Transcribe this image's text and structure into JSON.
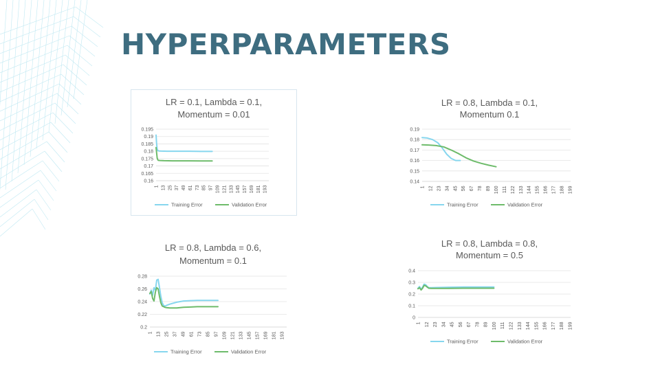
{
  "slide": {
    "title": "HYPERPARAMETERS"
  },
  "colors": {
    "title": "#3e6d80",
    "training": "#86d6ee",
    "validation": "#6dbb6a",
    "grid": "#e3e3e3",
    "text": "#595959"
  },
  "chart_data": [
    {
      "type": "line",
      "title_lines": [
        "LR = 0.1, Lambda = 0.1,",
        "Momentum = 0.01"
      ],
      "x_ticks": [
        "1",
        "13",
        "25",
        "37",
        "49",
        "61",
        "73",
        "85",
        "97",
        "109",
        "121",
        "133",
        "145",
        "157",
        "169",
        "181",
        "193"
      ],
      "y_ticks": [
        "0.195",
        "0.19",
        "0.185",
        "0.18",
        "0.175",
        "0.17",
        "0.165",
        "0.16"
      ],
      "ylim": [
        0.16,
        0.195
      ],
      "xlim": [
        1,
        200
      ],
      "grid": true,
      "legend": "bottom",
      "series": [
        {
          "name": "Training Error",
          "x": [
            1,
            2,
            3,
            4,
            6,
            10,
            20,
            40,
            60,
            80,
            100
          ],
          "y": [
            0.191,
            0.185,
            0.1815,
            0.1805,
            0.1802,
            0.1801,
            0.18,
            0.18,
            0.18,
            0.1799,
            0.1799
          ]
        },
        {
          "name": "Validation Error",
          "x": [
            1,
            2,
            3,
            4,
            5,
            8,
            15,
            30,
            60,
            80,
            100
          ],
          "y": [
            0.1825,
            0.179,
            0.1755,
            0.1742,
            0.1738,
            0.1737,
            0.1736,
            0.1735,
            0.1735,
            0.1734,
            0.1734
          ]
        }
      ]
    },
    {
      "type": "line",
      "title_lines": [
        "LR = 0.8, Lambda = 0.1,",
        "Momentum 0.1"
      ],
      "x_ticks": [
        "1",
        "12",
        "23",
        "34",
        "45",
        "56",
        "67",
        "78",
        "89",
        "100",
        "111",
        "122",
        "133",
        "144",
        "155",
        "166",
        "177",
        "188",
        "199"
      ],
      "y_ticks": [
        "0.19",
        "0.18",
        "0.17",
        "0.16",
        "0.15",
        "0.14"
      ],
      "ylim": [
        0.14,
        0.19
      ],
      "xlim": [
        1,
        200
      ],
      "grid": true,
      "legend": "bottom",
      "series": [
        {
          "name": "Training Error",
          "x": [
            1,
            8,
            15,
            22,
            28,
            34,
            40,
            46,
            52
          ],
          "y": [
            0.182,
            0.1815,
            0.18,
            0.177,
            0.172,
            0.166,
            0.162,
            0.16,
            0.16
          ]
        },
        {
          "name": "Validation Error",
          "x": [
            1,
            10,
            20,
            30,
            40,
            50,
            60,
            70,
            80,
            90,
            100
          ],
          "y": [
            0.175,
            0.1748,
            0.1743,
            0.173,
            0.17,
            0.1665,
            0.1625,
            0.1595,
            0.1573,
            0.1555,
            0.154
          ]
        }
      ]
    },
    {
      "type": "line",
      "title_lines": [
        "LR = 0.8, Lambda = 0.6,",
        "Momentum = 0.1"
      ],
      "x_ticks": [
        "1",
        "13",
        "25",
        "37",
        "49",
        "61",
        "73",
        "85",
        "97",
        "109",
        "121",
        "133",
        "145",
        "157",
        "169",
        "181",
        "193"
      ],
      "y_ticks": [
        "0.28",
        "0.26",
        "0.24",
        "0.22",
        "0.2"
      ],
      "ylim": [
        0.2,
        0.28
      ],
      "xlim": [
        1,
        200
      ],
      "grid": true,
      "legend": "bottom",
      "series": [
        {
          "name": "Training Error",
          "x": [
            1,
            3,
            5,
            7,
            9,
            11,
            13,
            15,
            17,
            19,
            21,
            23,
            25,
            30,
            40,
            50,
            60,
            70,
            80,
            90,
            100
          ],
          "y": [
            0.252,
            0.258,
            0.25,
            0.262,
            0.258,
            0.274,
            0.275,
            0.262,
            0.248,
            0.238,
            0.234,
            0.233,
            0.234,
            0.236,
            0.239,
            0.241,
            0.2415,
            0.242,
            0.242,
            0.242,
            0.242
          ]
        },
        {
          "name": "Validation Error",
          "x": [
            1,
            3,
            5,
            7,
            9,
            11,
            13,
            15,
            17,
            19,
            21,
            23,
            25,
            30,
            40,
            50,
            60,
            70,
            80,
            90,
            100
          ],
          "y": [
            0.253,
            0.256,
            0.245,
            0.241,
            0.255,
            0.262,
            0.26,
            0.248,
            0.238,
            0.233,
            0.232,
            0.231,
            0.2305,
            0.23,
            0.23,
            0.231,
            0.2315,
            0.232,
            0.232,
            0.232,
            0.232
          ]
        }
      ]
    },
    {
      "type": "line",
      "title_lines": [
        "LR = 0.8, Lambda = 0.8,",
        "Momentum = 0.5"
      ],
      "x_ticks": [
        "1",
        "12",
        "23",
        "34",
        "45",
        "56",
        "67",
        "78",
        "89",
        "100",
        "111",
        "122",
        "133",
        "144",
        "155",
        "166",
        "177",
        "188",
        "199"
      ],
      "y_ticks": [
        "0.4",
        "0.3",
        "0.2",
        "0.1",
        "0"
      ],
      "ylim": [
        0,
        0.4
      ],
      "xlim": [
        1,
        200
      ],
      "grid": true,
      "legend": "bottom",
      "series": [
        {
          "name": "Training Error",
          "x": [
            1,
            3,
            5,
            7,
            9,
            11,
            13,
            15,
            18,
            25,
            40,
            60,
            80,
            100
          ],
          "y": [
            0.25,
            0.265,
            0.24,
            0.26,
            0.285,
            0.28,
            0.265,
            0.255,
            0.255,
            0.256,
            0.258,
            0.26,
            0.26,
            0.26
          ]
        },
        {
          "name": "Validation Error",
          "x": [
            1,
            3,
            5,
            7,
            9,
            11,
            13,
            15,
            18,
            25,
            40,
            60,
            80,
            100
          ],
          "y": [
            0.245,
            0.255,
            0.235,
            0.25,
            0.275,
            0.27,
            0.26,
            0.25,
            0.248,
            0.248,
            0.249,
            0.25,
            0.25,
            0.25
          ]
        }
      ]
    }
  ]
}
